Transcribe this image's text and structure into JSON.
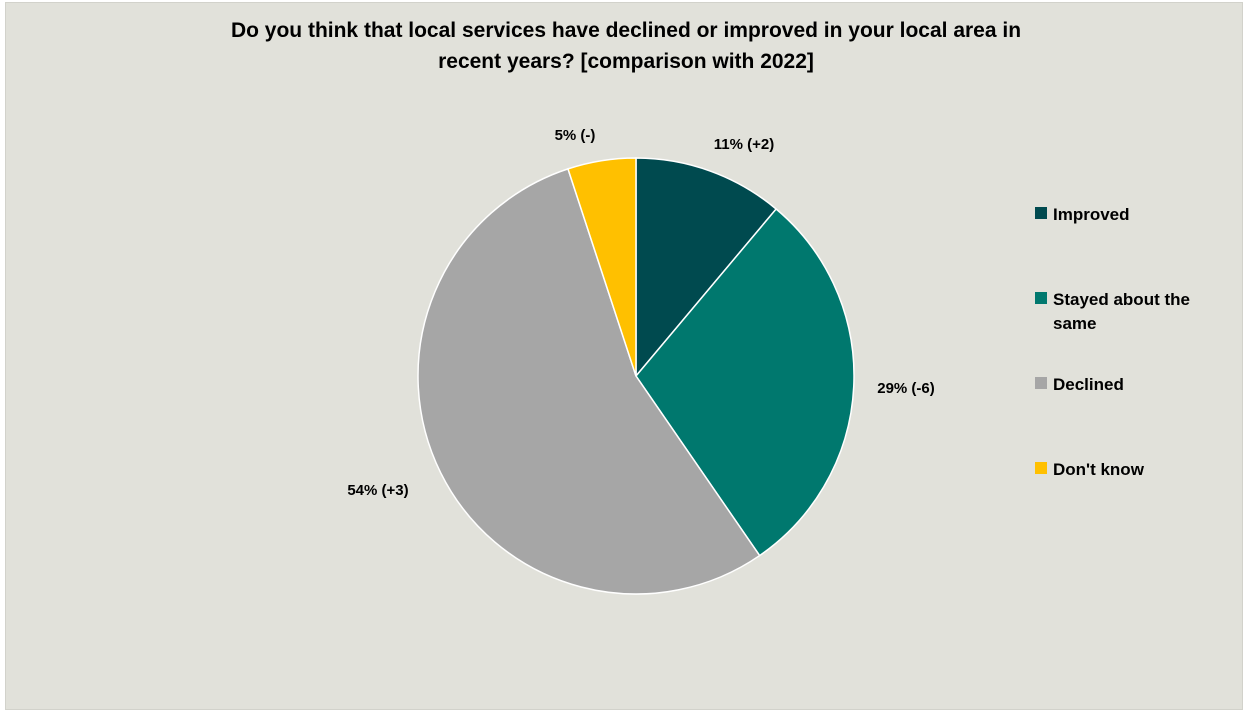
{
  "chart_data": {
    "type": "pie",
    "title": "Do you think that local services have declined or improved in your local area in recent years? [comparison with 2022]",
    "title_lines": [
      "Do you think that local services have declined or improved in your local area in",
      "recent years? [comparison with 2022]"
    ],
    "slices": [
      {
        "name": "Improved",
        "value": 11,
        "label": "11% (+2)",
        "color": "#004a4f"
      },
      {
        "name": "Stayed about the same",
        "value": 29,
        "label": "29% (-6)",
        "color": "#00786e"
      },
      {
        "name": "Declined",
        "value": 54,
        "label": "54% (+3)",
        "color": "#a6a6a6"
      },
      {
        "name": "Don't know",
        "value": 5,
        "label": "5% (-)",
        "color": "#ffc000"
      }
    ],
    "legend_position": "right"
  }
}
